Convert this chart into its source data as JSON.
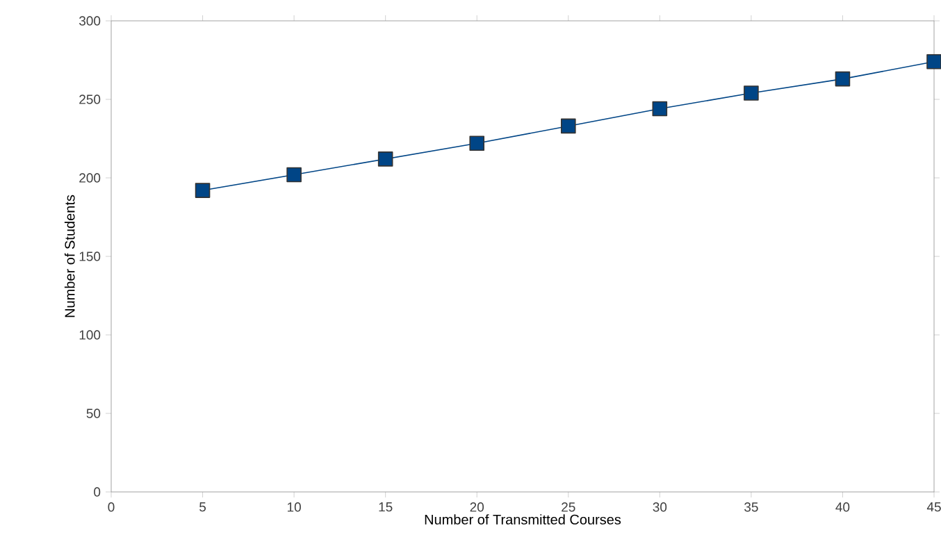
{
  "chart_data": {
    "type": "line",
    "xlabel": "Number of Transmitted Courses",
    "ylabel": "Number of Students",
    "x": [
      5,
      10,
      15,
      20,
      25,
      30,
      35,
      40,
      45
    ],
    "series": [
      {
        "color": "#004586",
        "values": [
          192,
          202,
          212,
          222,
          233,
          244,
          254,
          263,
          274
        ]
      }
    ],
    "xlim": [
      0,
      45
    ],
    "ylim": [
      0,
      300
    ],
    "xticks": [
      0,
      5,
      10,
      15,
      20,
      25,
      30,
      35,
      40,
      45
    ],
    "yticks": [
      0,
      50,
      100,
      150,
      200,
      250,
      300
    ],
    "marker": "square",
    "line_style": "solid"
  }
}
